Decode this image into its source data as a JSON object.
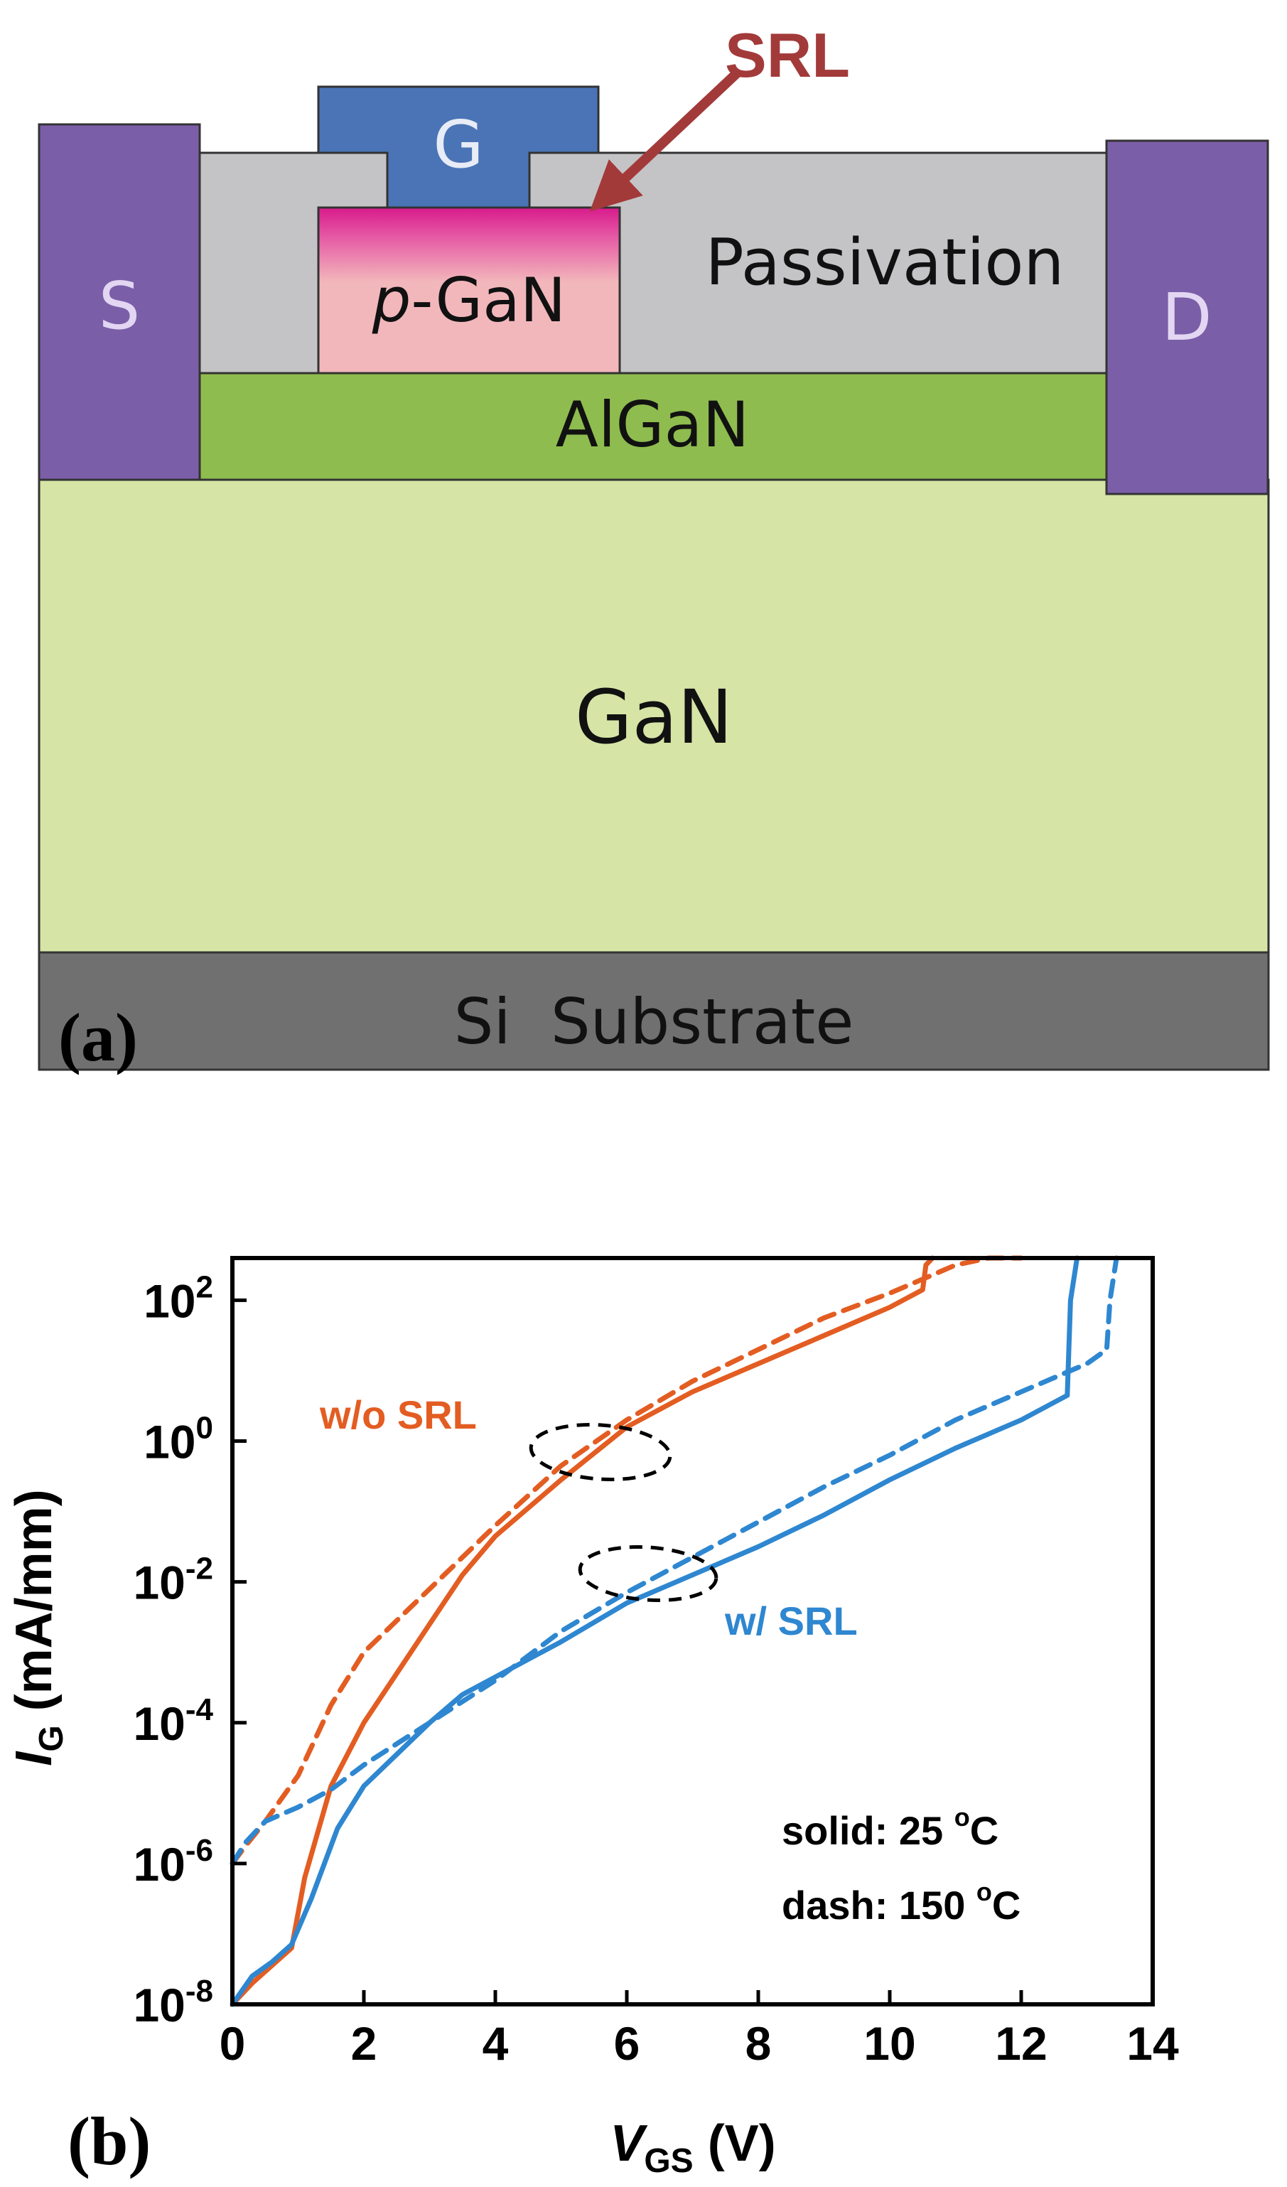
{
  "figure_a": {
    "panel_label": "(a)",
    "layers": {
      "gate": "G",
      "source": "S",
      "drain": "D",
      "p_gan_italic": "p",
      "p_gan_rest": "-GaN",
      "passivation": "Passivation",
      "algan": "AlGaN",
      "gan": "GaN",
      "substrate": "Si  Substrate",
      "srl_callout": "SRL"
    },
    "colors": {
      "metal_purple": "#7b5ea8",
      "gate_blue": "#4a74b6",
      "passivation_gray": "#c4c4c6",
      "p_gan_pink": "#f2b7bb",
      "srl_magenta": "#d81b8c",
      "algan_green": "#8fbc4e",
      "gan_green": "#d6e4a6",
      "substrate_gray": "#707070",
      "callout_red": "#a33a3a"
    }
  },
  "figure_b": {
    "panel_label": "(b)",
    "chart_data": {
      "type": "line",
      "xlabel_italic": "V",
      "xlabel_sub": "GS",
      "xlabel_rest": " (V)",
      "ylabel_italic": "I",
      "ylabel_sub": "G",
      "ylabel_rest": " (mA/mm)",
      "xlim": [
        0,
        14
      ],
      "ylim_log10": [
        -8,
        2.6
      ],
      "x_ticks": [
        0,
        2,
        4,
        6,
        8,
        10,
        12,
        14
      ],
      "x_tick_labels": [
        "0",
        "2",
        "4",
        "6",
        "8",
        "10",
        "12",
        "14"
      ],
      "y_ticks": [
        {
          "base": "10",
          "exp": "2",
          "log10": 2
        },
        {
          "base": "10",
          "exp": "0",
          "log10": 0
        },
        {
          "base": "10",
          "exp": "-2",
          "log10": -2
        },
        {
          "base": "10",
          "exp": "-4",
          "log10": -4
        },
        {
          "base": "10",
          "exp": "-6",
          "log10": -6
        },
        {
          "base": "10",
          "exp": "-8",
          "log10": -8
        }
      ],
      "series": [
        {
          "name": "w/o SRL, 25 °C",
          "color": "#e35d22",
          "style": "solid",
          "x": [
            0,
            0.3,
            0.6,
            0.9,
            1.1,
            1.5,
            2,
            2.5,
            3,
            3.5,
            4,
            5,
            6,
            7,
            8,
            9,
            10,
            10.5,
            10.55,
            10.65
          ],
          "log_y": [
            -8.0,
            -7.7,
            -7.45,
            -7.2,
            -6.2,
            -4.9,
            -4.0,
            -3.3,
            -2.6,
            -1.9,
            -1.35,
            -0.55,
            0.2,
            0.7,
            1.1,
            1.5,
            1.9,
            2.15,
            2.5,
            2.6
          ]
        },
        {
          "name": "w/o SRL, 150 °C",
          "color": "#e35d22",
          "style": "dash",
          "x": [
            0,
            0.2,
            0.5,
            1,
            1.5,
            2,
            3,
            4,
            5,
            6,
            7,
            8,
            9,
            10,
            10.5,
            11,
            11.5,
            12
          ],
          "log_y": [
            -6.0,
            -5.75,
            -5.4,
            -4.75,
            -3.75,
            -3.0,
            -2.1,
            -1.2,
            -0.35,
            0.3,
            0.85,
            1.3,
            1.75,
            2.1,
            2.3,
            2.5,
            2.6,
            2.6
          ]
        },
        {
          "name": "w/ SRL, 25 °C",
          "color": "#2e87d0",
          "style": "solid",
          "x": [
            0,
            0.3,
            0.6,
            0.9,
            1.2,
            1.6,
            2,
            2.5,
            3,
            3.5,
            4,
            5,
            6,
            7,
            8,
            9,
            10,
            11,
            12,
            12.7,
            12.75,
            12.85
          ],
          "log_y": [
            -8.0,
            -7.6,
            -7.4,
            -7.15,
            -6.5,
            -5.5,
            -4.9,
            -4.45,
            -4.0,
            -3.6,
            -3.35,
            -2.85,
            -2.3,
            -1.9,
            -1.5,
            -1.05,
            -0.55,
            -0.1,
            0.3,
            0.65,
            2.0,
            2.6
          ]
        },
        {
          "name": "w/ SRL, 150 °C",
          "color": "#2e87d0",
          "style": "dash",
          "x": [
            0,
            0.2,
            0.5,
            1,
            1.5,
            2,
            3,
            4,
            5,
            6,
            7,
            8,
            9,
            10,
            11,
            12,
            13,
            13.3,
            13.35,
            13.45
          ],
          "log_y": [
            -6.0,
            -5.7,
            -5.4,
            -5.2,
            -4.95,
            -4.6,
            -4.0,
            -3.4,
            -2.7,
            -2.15,
            -1.65,
            -1.15,
            -0.65,
            -0.2,
            0.3,
            0.7,
            1.1,
            1.3,
            2.0,
            2.6
          ]
        }
      ],
      "annotations": {
        "wo_srl": "w/o SRL",
        "w_srl": "w/ SRL",
        "solid_prefix": "solid: 25 ",
        "dash_prefix": "dash: 150 ",
        "degree_sup": "o",
        "celsius": "C"
      }
    }
  }
}
